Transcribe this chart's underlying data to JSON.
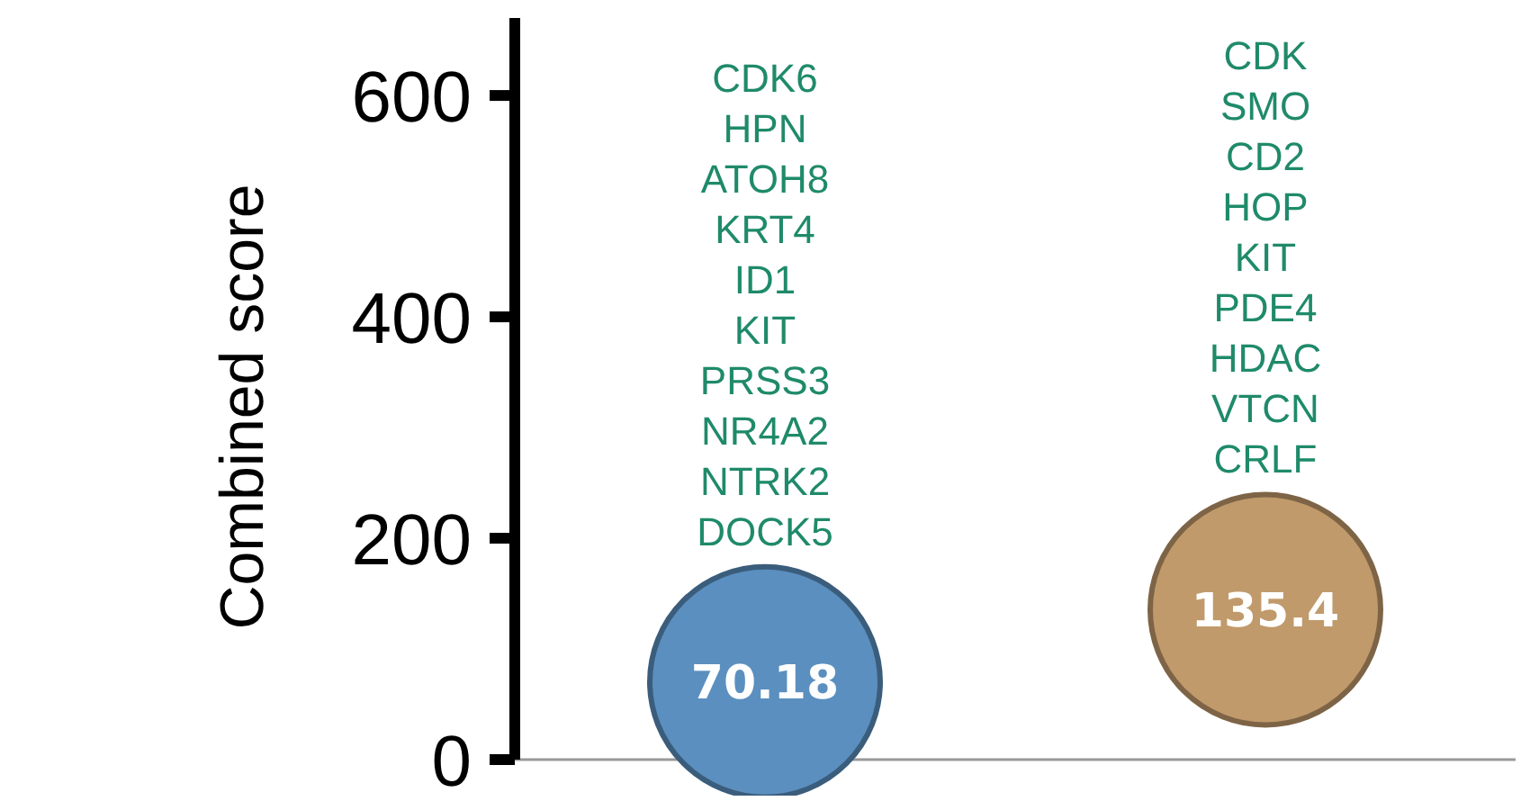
{
  "chart_data": {
    "type": "bubble",
    "ylabel": "Combined score",
    "categories": [
      null,
      null
    ],
    "ylim": [
      0,
      670
    ],
    "yticks": [
      0,
      200,
      400,
      600
    ],
    "data_labels": true,
    "series": [
      {
        "color": "#5b8fbf",
        "values": [
          70.18,
          null
        ]
      },
      {
        "color": "#c19a6b",
        "values": [
          null,
          135.4
        ]
      }
    ],
    "annotations": [
      "CDK6\nHPN\nATOH8\nKRT4\nID1\nKIT\nPRSS3\nNR4A2\nNTRK2\nDOCK5",
      "CDK\nSMO\nCD2\nHOP\nKIT\nPDE4\nHDAC\nVTCN\nCRLF"
    ]
  }
}
